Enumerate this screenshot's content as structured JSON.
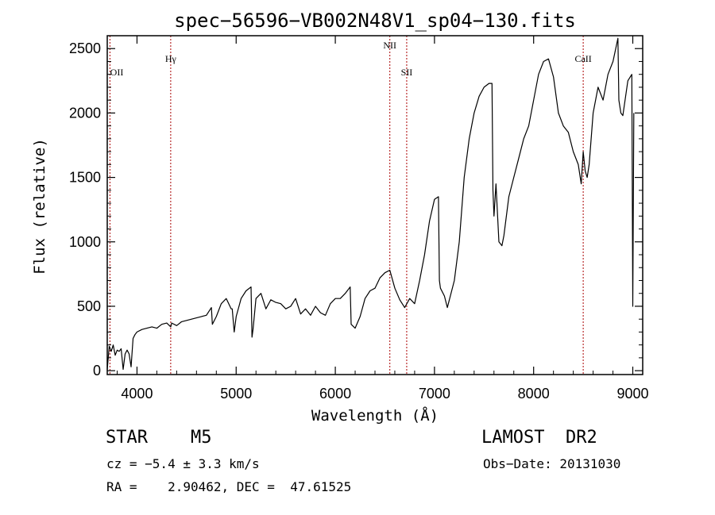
{
  "chart_data": {
    "type": "line",
    "title": "spec−56596−VB002N48V1_sp04−130.fits",
    "xlabel": "Wavelength (Å)",
    "ylabel": "Flux (relative)",
    "xlim": [
      3700,
      9100
    ],
    "ylim": [
      -30,
      2600
    ],
    "x_ticks": [
      4000,
      5000,
      6000,
      7000,
      8000,
      9000
    ],
    "y_ticks": [
      0,
      500,
      1000,
      1500,
      2000,
      2500
    ],
    "grid": false,
    "line_color": "#000000",
    "marker_color": "#aa0000",
    "line_markers": [
      {
        "label": "OII",
        "wavelength": 3727
      },
      {
        "label": "Hγ",
        "wavelength": 4340
      },
      {
        "label": "NII",
        "wavelength": 6550
      },
      {
        "label": "SII",
        "wavelength": 6720
      },
      {
        "label": "CaII",
        "wavelength": 8500
      }
    ],
    "series": [
      {
        "x": [
          3700,
          3720,
          3740,
          3760,
          3780,
          3800,
          3820,
          3840,
          3860,
          3880,
          3900,
          3920,
          3940,
          3960,
          3980,
          4000,
          4050,
          4100,
          4150,
          4200,
          4250,
          4300,
          4340,
          4350,
          4400,
          4450,
          4500,
          4550,
          4600,
          4650,
          4700,
          4750,
          4760,
          4800,
          4850,
          4900,
          4950,
          4960,
          4980,
          5000,
          5050,
          5100,
          5150,
          5160,
          5170,
          5200,
          5250,
          5300,
          5350,
          5400,
          5450,
          5500,
          5550,
          5600,
          5650,
          5700,
          5750,
          5800,
          5850,
          5900,
          5950,
          6000,
          6050,
          6100,
          6150,
          6160,
          6200,
          6250,
          6300,
          6350,
          6400,
          6450,
          6500,
          6550,
          6600,
          6650,
          6700,
          6750,
          6800,
          6850,
          6900,
          6950,
          7000,
          7040,
          7050,
          7060,
          7100,
          7130,
          7200,
          7250,
          7300,
          7350,
          7400,
          7450,
          7500,
          7550,
          7580,
          7590,
          7600,
          7620,
          7650,
          7680,
          7700,
          7750,
          7800,
          7850,
          7900,
          7950,
          8000,
          8050,
          8100,
          8150,
          8200,
          8250,
          8300,
          8350,
          8400,
          8450,
          8480,
          8500,
          8520,
          8540,
          8560,
          8600,
          8650,
          8700,
          8750,
          8800,
          8850,
          8860,
          8880,
          8900,
          8950,
          8990,
          9000,
          9010
        ],
        "y": [
          10,
          190,
          150,
          200,
          120,
          160,
          150,
          170,
          10,
          130,
          160,
          130,
          30,
          250,
          280,
          300,
          320,
          330,
          340,
          330,
          360,
          370,
          340,
          370,
          350,
          380,
          390,
          400,
          410,
          420,
          430,
          490,
          360,
          420,
          520,
          560,
          480,
          480,
          300,
          420,
          560,
          620,
          650,
          260,
          320,
          560,
          600,
          480,
          550,
          530,
          520,
          480,
          500,
          560,
          440,
          480,
          430,
          500,
          450,
          430,
          520,
          560,
          560,
          600,
          650,
          360,
          330,
          420,
          560,
          620,
          640,
          720,
          760,
          780,
          640,
          550,
          490,
          560,
          520,
          700,
          900,
          1160,
          1330,
          1350,
          700,
          640,
          580,
          490,
          700,
          1000,
          1500,
          1800,
          2000,
          2130,
          2200,
          2230,
          2230,
          1400,
          1200,
          1450,
          1000,
          970,
          1050,
          1350,
          1500,
          1650,
          1800,
          1900,
          2100,
          2300,
          2400,
          2420,
          2280,
          2000,
          1900,
          1850,
          1700,
          1600,
          1450,
          1700,
          1550,
          1500,
          1600,
          2000,
          2200,
          2100,
          2300,
          2400,
          2580,
          2100,
          2000,
          1980,
          2250,
          2300,
          500,
          2000
        ]
      }
    ]
  },
  "info": {
    "object_class": "STAR",
    "subclass": "M5",
    "survey": "LAMOST  DR2",
    "cz_text": "cz = −5.4 ± 3.3 km/s",
    "obs_date_text": "Obs−Date: 20131030",
    "coord_text": "RA =    2.90462, DEC =  47.61525"
  }
}
